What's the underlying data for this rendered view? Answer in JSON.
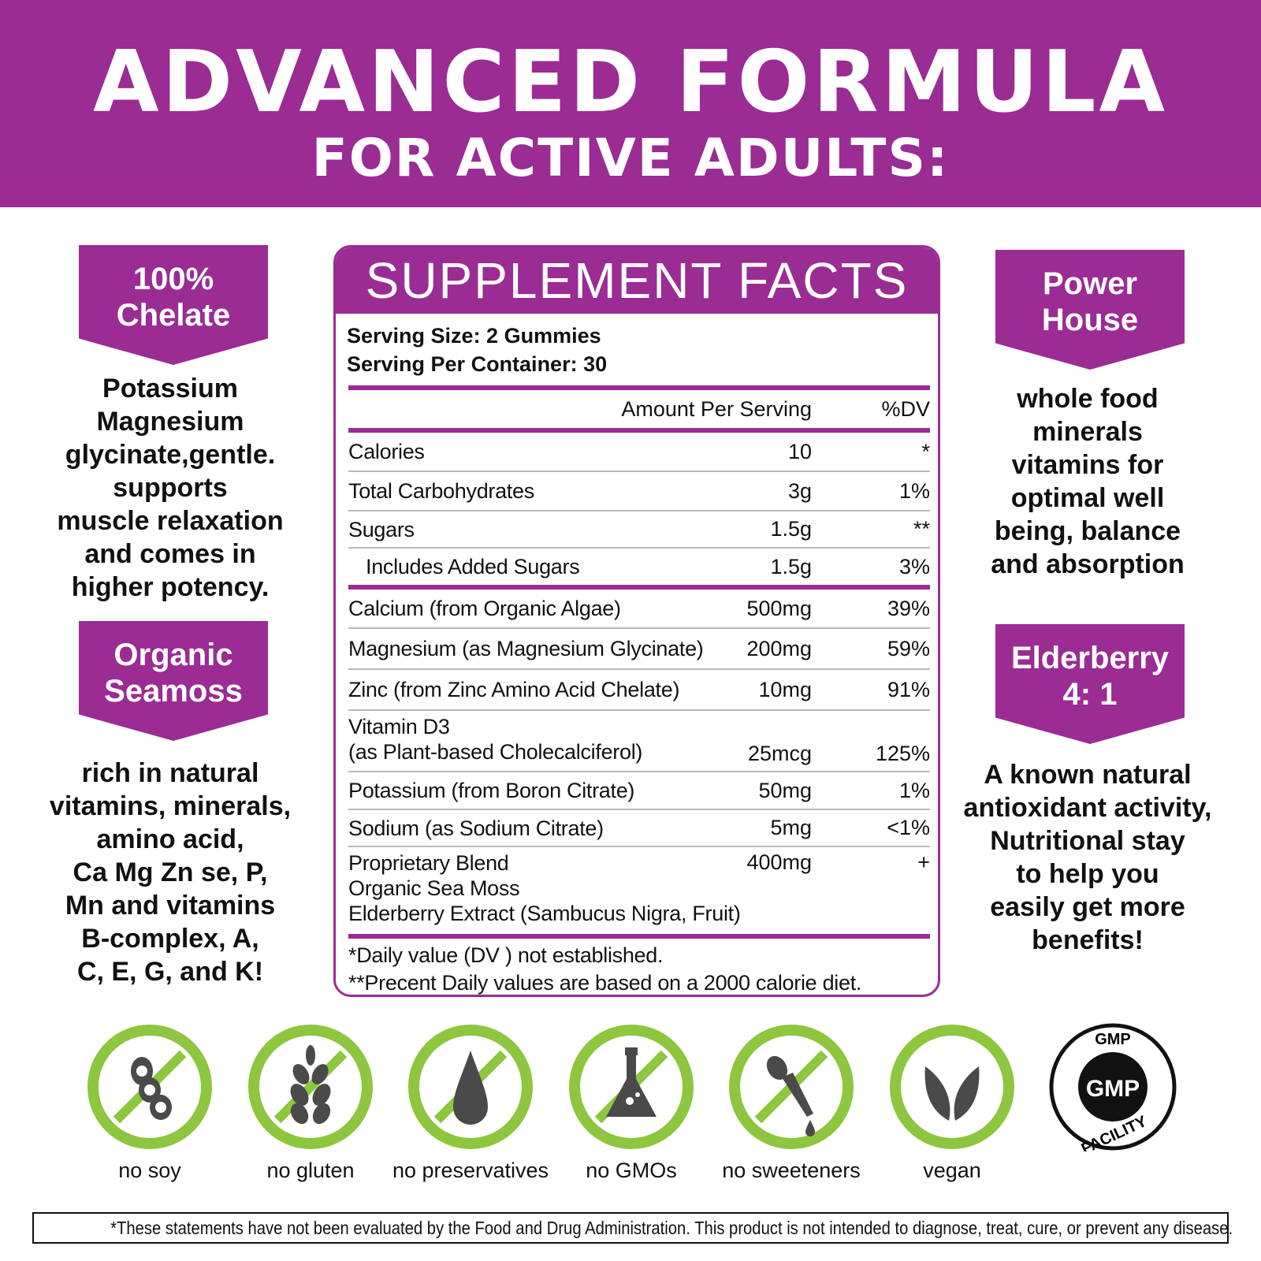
{
  "header": {
    "title": "ADVANCED FORMULA",
    "subtitle": "FOR ACTIVE ADULTS:"
  },
  "colors": {
    "brand": "#9a2c93",
    "icon_green": "#8dc63f",
    "icon_gray": "#4a4a4a"
  },
  "left": [
    {
      "badge": [
        "100%",
        "Chelate"
      ],
      "text": [
        "Potassium",
        "Magnesium",
        "glycinate,gentle.",
        "supports",
        "muscle relaxation",
        "and comes in",
        "higher potency."
      ]
    },
    {
      "badge": [
        "Organic",
        "Seamoss"
      ],
      "text": [
        "rich in natural",
        "vitamins, minerals,",
        "amino acid,",
        "Ca Mg Zn se, P,",
        "Mn and vitamins",
        "B-complex, A,",
        "C, E, G, and K!"
      ]
    }
  ],
  "right": [
    {
      "badge": [
        "Power",
        "House"
      ],
      "text": [
        "whole food",
        "minerals",
        "vitamins for",
        "optimal well",
        "being, balance",
        "and absorption"
      ]
    },
    {
      "badge": [
        "Elderberry",
        "4: 1"
      ],
      "text": [
        "A known natural",
        "antioxidant activity,",
        "Nutritional stay",
        "to help you",
        "easily get more",
        "benefits!"
      ]
    }
  ],
  "facts": {
    "title": "SUPPLEMENT FACTS",
    "serving_size": "Serving Size: 2 Gummies",
    "servings_per_container": "Serving Per Container: 30",
    "col_amount": "Amount Per Serving",
    "col_dv": "%DV",
    "rows": [
      {
        "name": [
          "Calories"
        ],
        "amount": "10",
        "dv": "*"
      },
      {
        "name": [
          "Total Carbohydrates"
        ],
        "amount": "3g",
        "dv": "1%"
      },
      {
        "name": [
          "Sugars"
        ],
        "amount": "1.5g",
        "dv": "**"
      },
      {
        "name": [
          "  Includes Added Sugars"
        ],
        "amount": "1.5g",
        "dv": "3%"
      },
      {
        "name": [
          "Calcium (from Organic Algae)"
        ],
        "amount": "500mg",
        "dv": "39%"
      },
      {
        "name": [
          "Magnesium (as Magnesium Glycinate)"
        ],
        "amount": "200mg",
        "dv": "59%"
      },
      {
        "name": [
          "Zinc (from Zinc Amino Acid Chelate)"
        ],
        "amount": "10mg",
        "dv": "91%"
      },
      {
        "name": [
          "Vitamin D3",
          "(as Plant-based Cholecalciferol)"
        ],
        "amount": "25mcg",
        "dv": "125%"
      },
      {
        "name": [
          "Potassium (from Boron Citrate)"
        ],
        "amount": "50mg",
        "dv": "1%"
      },
      {
        "name": [
          "Sodium (as Sodium Citrate)"
        ],
        "amount": "5mg",
        "dv": "<1%"
      },
      {
        "name": [
          "Proprietary Blend",
          "Organic Sea Moss",
          "Elderberry Extract (Sambucus Nigra, Fruit)"
        ],
        "amount": "400mg",
        "dv": "+"
      }
    ],
    "footnotes": [
      "*Daily value (DV ) not established.",
      "**Precent Daily values are based  on a 2000 calorie diet."
    ]
  },
  "badges": [
    {
      "icon": "soy-icon",
      "label": "no soy"
    },
    {
      "icon": "wheat-icon",
      "label": "no gluten"
    },
    {
      "icon": "drop-icon",
      "label": "no preservatives"
    },
    {
      "icon": "flask-icon",
      "label": "no GMOs"
    },
    {
      "icon": "dropper-icon",
      "label": "no sweeteners"
    },
    {
      "icon": "leaf-icon",
      "label": "vegan"
    },
    {
      "icon": "gmp-icon",
      "label": "",
      "seal": "GMP FACILITY"
    }
  ],
  "disclaimer": "*These statements have not been evaluated by the Food and Drug Administration. This product is not intended to diagnose, treat, cure, or prevent any disease."
}
